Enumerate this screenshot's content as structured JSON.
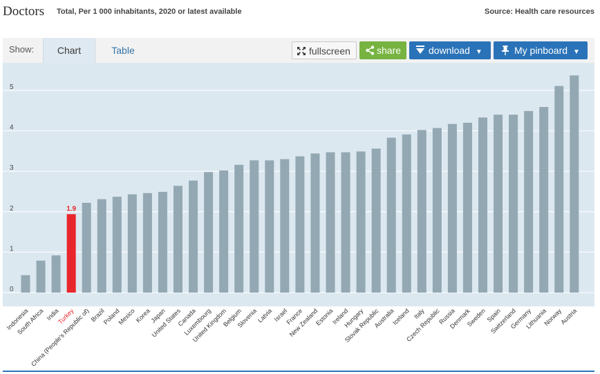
{
  "header": {
    "title": "Doctors",
    "subtitle": "Total, Per 1 000 inhabitants, 2020 or latest available",
    "source": "Source: Health care resources"
  },
  "toolbar": {
    "show_label": "Show:",
    "tabs": [
      {
        "label": "Chart",
        "active": true
      },
      {
        "label": "Table",
        "active": false
      }
    ],
    "fullscreen_label": "fullscreen",
    "share_label": "share",
    "download_label": "download",
    "pinboard_label": "My pinboard"
  },
  "colors": {
    "bar": "#93a8b3",
    "highlight": "#e8262c",
    "plot_bg": "#dce8f0",
    "accent": "#2a73b8",
    "share": "#77b340"
  },
  "chart_data": {
    "type": "bar",
    "title": "Doctors",
    "ylim": [
      0,
      5.5
    ],
    "yticks": [
      0,
      1,
      2,
      3,
      4,
      5
    ],
    "grid": true,
    "highlight": "Turkey",
    "highlight_label": "1.9",
    "categories": [
      "Indonesia",
      "South Africa",
      "India",
      "Turkey",
      "China (People's Republic of)",
      "Brazil",
      "Poland",
      "Mexico",
      "Korea",
      "Japan",
      "United States",
      "Canada",
      "Luxembourg",
      "United Kingdom",
      "Belgium",
      "Slovenia",
      "Latvia",
      "Israel",
      "France",
      "New Zealand",
      "Estonia",
      "Ireland",
      "Hungary",
      "Slovak Republic",
      "Australia",
      "Iceland",
      "Italy",
      "Czech Republic",
      "Russia",
      "Denmark",
      "Sweden",
      "Spain",
      "Switzerland",
      "Germany",
      "Lithuania",
      "Norway",
      "Austria"
    ],
    "values": [
      0.43,
      0.79,
      0.92,
      1.94,
      2.22,
      2.31,
      2.37,
      2.43,
      2.46,
      2.49,
      2.64,
      2.77,
      2.98,
      3.02,
      3.16,
      3.27,
      3.27,
      3.3,
      3.37,
      3.44,
      3.47,
      3.47,
      3.49,
      3.56,
      3.83,
      3.91,
      4.02,
      4.07,
      4.17,
      4.2,
      4.33,
      4.4,
      4.4,
      4.49,
      4.59,
      5.11,
      5.37
    ]
  }
}
